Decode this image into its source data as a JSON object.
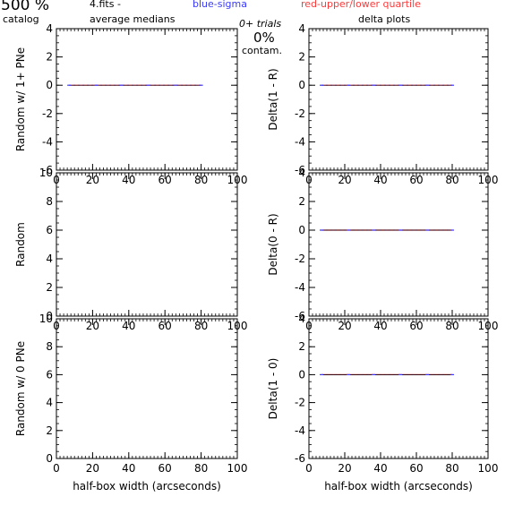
{
  "header": {
    "percent": "500 %",
    "catalog": "catalog",
    "filename": "4.fits  -",
    "average_medians": "average medians",
    "blue_legend": "blue-sigma",
    "red_legend": "red-upper/lower quartile",
    "trials": "0+ trials",
    "contam_pct": "0%",
    "contam_label": "contam.",
    "delta_title": "delta plots"
  },
  "colors": {
    "blue": "#3a3aff",
    "red": "#ff3a3a",
    "line": "#000000"
  },
  "chart_data": [
    {
      "type": "line",
      "ylabel": "Random w/ 1+ PNe",
      "xlim": [
        0,
        100
      ],
      "ylim": [
        -6,
        4
      ],
      "x_ticks": [
        "0",
        "20",
        "40",
        "60",
        "80",
        "100"
      ],
      "y_ticks": [
        "-6",
        "-4",
        "-2",
        "0",
        "2",
        "4"
      ],
      "x": [
        7,
        22,
        36,
        51,
        66,
        80
      ],
      "series": [
        {
          "values": [
            0,
            0,
            0,
            0,
            0,
            0
          ]
        }
      ]
    },
    {
      "type": "line",
      "ylabel": "Delta(1 - R)",
      "xlim": [
        0,
        100
      ],
      "ylim": [
        -6,
        4
      ],
      "x_ticks": [
        "0",
        "20",
        "40",
        "60",
        "80",
        "100"
      ],
      "y_ticks": [
        "-6",
        "-4",
        "-2",
        "0",
        "2",
        "4"
      ],
      "x": [
        7,
        22,
        36,
        51,
        66,
        80
      ],
      "series": [
        {
          "values": [
            0,
            0,
            0,
            0,
            0,
            0
          ]
        }
      ]
    },
    {
      "type": "line",
      "ylabel": "Random",
      "xlim": [
        0,
        100
      ],
      "ylim": [
        0,
        10
      ],
      "x_ticks": [
        "0",
        "20",
        "40",
        "60",
        "80",
        "100"
      ],
      "y_ticks": [
        "0",
        "2",
        "4",
        "6",
        "8",
        "10"
      ],
      "x": [],
      "series": []
    },
    {
      "type": "line",
      "ylabel": "Delta(0 - R)",
      "xlim": [
        0,
        100
      ],
      "ylim": [
        -6,
        4
      ],
      "x_ticks": [
        "0",
        "20",
        "40",
        "60",
        "80",
        "100"
      ],
      "y_ticks": [
        "-6",
        "-4",
        "-2",
        "0",
        "2",
        "4"
      ],
      "x": [
        7,
        22,
        36,
        51,
        66,
        80
      ],
      "series": [
        {
          "values": [
            0,
            0,
            0,
            0,
            0,
            0
          ]
        }
      ]
    },
    {
      "type": "line",
      "ylabel": "Random w/ 0 PNe",
      "xlabel": "half-box width (arcseconds)",
      "xlim": [
        0,
        100
      ],
      "ylim": [
        0,
        10
      ],
      "x_ticks": [
        "0",
        "20",
        "40",
        "60",
        "80",
        "100"
      ],
      "y_ticks": [
        "0",
        "2",
        "4",
        "6",
        "8",
        "10"
      ],
      "x": [],
      "series": []
    },
    {
      "type": "line",
      "ylabel": "Delta(1 - 0)",
      "xlabel": "half-box width (arcseconds)",
      "xlim": [
        0,
        100
      ],
      "ylim": [
        -6,
        4
      ],
      "x_ticks": [
        "0",
        "20",
        "40",
        "60",
        "80",
        "100"
      ],
      "y_ticks": [
        "-6",
        "-4",
        "-2",
        "0",
        "2",
        "4"
      ],
      "x": [
        7,
        22,
        36,
        51,
        66,
        80
      ],
      "series": [
        {
          "values": [
            0,
            0,
            0,
            0,
            0,
            0
          ]
        }
      ]
    }
  ]
}
